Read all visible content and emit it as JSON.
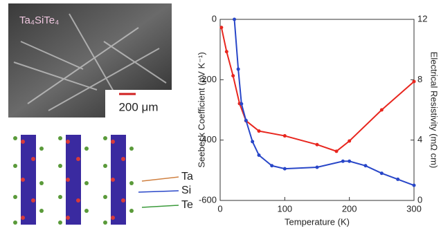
{
  "image": {
    "sample_label": "Ta₄SiTe₄",
    "scale_bar": "200 μm"
  },
  "structure": {
    "labels": [
      "Ta",
      "Si",
      "Te"
    ]
  },
  "chart_data": {
    "type": "line",
    "xlabel": "Temperature (K)",
    "ylabel": "Seebeck Coefficient (μV K⁻¹)",
    "y2label": "Electrical Resistivity (mΩ cm)",
    "xlim": [
      0,
      300
    ],
    "xticks": [
      0,
      100,
      200,
      300
    ],
    "ylim": [
      -600,
      0
    ],
    "yticks": [
      0,
      -200,
      -400,
      -600
    ],
    "y2lim": [
      0,
      12
    ],
    "y2ticks": [
      0,
      4,
      8,
      12
    ],
    "series": [
      {
        "name": "Seebeck",
        "color": "#e8261e",
        "axis": "y",
        "x": [
          2,
          10,
          20,
          30,
          40,
          60,
          100,
          150,
          180,
          200,
          250,
          300
        ],
        "values": [
          -27,
          -107,
          -187,
          -279,
          -336,
          -370,
          -386,
          -415,
          -437,
          -403,
          -300,
          -206
        ]
      },
      {
        "name": "Resistivity",
        "color": "#2846c8",
        "axis": "y2",
        "x": [
          22,
          28,
          33,
          40,
          50,
          60,
          80,
          100,
          150,
          190,
          200,
          225,
          250,
          275,
          300
        ],
        "values": [
          12,
          8.7,
          6.4,
          5.3,
          3.9,
          3.0,
          2.3,
          2.1,
          2.2,
          2.6,
          2.6,
          2.3,
          1.8,
          1.4,
          1.0
        ]
      }
    ]
  }
}
